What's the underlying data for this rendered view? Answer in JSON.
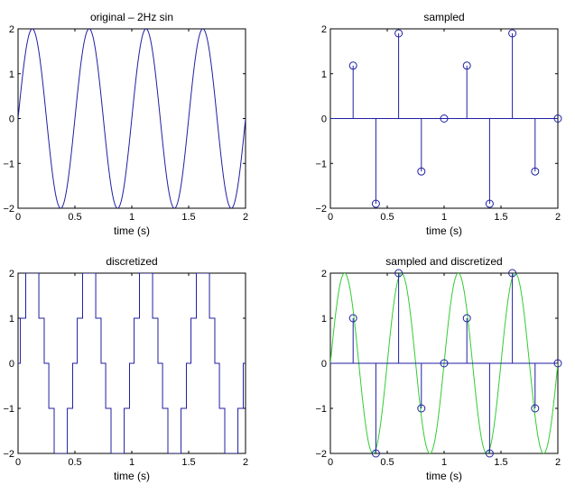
{
  "chart_data": [
    {
      "type": "line",
      "title": "original – 2Hz sin",
      "xlabel": "time (s)",
      "ylabel": "",
      "xlim": [
        0,
        2
      ],
      "ylim": [
        -2,
        2
      ],
      "xticks": [
        "0",
        "0.5",
        "1",
        "1.5",
        "2"
      ],
      "yticks": [
        "−2",
        "−1",
        "0",
        "1",
        "2"
      ],
      "series": [
        {
          "kind": "continuous",
          "function": "2*sin(2*pi*2*t)",
          "frequency_hz": 2,
          "amplitude": 2,
          "color": "#1f1fa3"
        }
      ]
    },
    {
      "type": "stem",
      "title": "sampled",
      "xlabel": "time (s)",
      "ylabel": "",
      "xlim": [
        0,
        2
      ],
      "ylim": [
        -2,
        2
      ],
      "xticks": [
        "0",
        "0.5",
        "1",
        "1.5",
        "2"
      ],
      "yticks": [
        "−2",
        "−1",
        "0",
        "1",
        "2"
      ],
      "series": [
        {
          "kind": "stem",
          "color": "#1f1fa3",
          "x": [
            0.2,
            0.4,
            0.6,
            0.8,
            1.0,
            1.2,
            1.4,
            1.6,
            1.8,
            2.0
          ],
          "y": [
            1.18,
            -1.9,
            1.9,
            -1.18,
            0,
            1.18,
            -1.9,
            1.9,
            -1.18,
            0
          ]
        }
      ]
    },
    {
      "type": "line",
      "title": "discretized",
      "xlabel": "time (s)",
      "ylabel": "",
      "xlim": [
        0,
        2
      ],
      "ylim": [
        -2,
        2
      ],
      "xticks": [
        "0",
        "0.5",
        "1",
        "1.5",
        "2"
      ],
      "yticks": [
        "−2",
        "−1",
        "0",
        "1",
        "2"
      ],
      "series": [
        {
          "kind": "quantized",
          "function": "round(2*sin(2*pi*2*t))",
          "levels": [
            -2,
            -1,
            0,
            1,
            2
          ],
          "color": "#1f1fa3"
        }
      ]
    },
    {
      "type": "stem",
      "title": "sampled and discretized",
      "xlabel": "time (s)",
      "ylabel": "",
      "xlim": [
        0,
        2
      ],
      "ylim": [
        -2,
        2
      ],
      "xticks": [
        "0",
        "0.5",
        "1",
        "1.5",
        "2"
      ],
      "yticks": [
        "−2",
        "−1",
        "0",
        "1",
        "2"
      ],
      "series": [
        {
          "kind": "continuous",
          "function": "2*sin(2*pi*2*t)",
          "color": "#33cc33"
        },
        {
          "kind": "stem",
          "color": "#1f1fa3",
          "x": [
            0.2,
            0.4,
            0.6,
            0.8,
            1.0,
            1.2,
            1.4,
            1.6,
            1.8,
            2.0
          ],
          "y": [
            1,
            -2,
            2,
            -1,
            0,
            1,
            -2,
            2,
            -1,
            0
          ]
        }
      ]
    }
  ]
}
